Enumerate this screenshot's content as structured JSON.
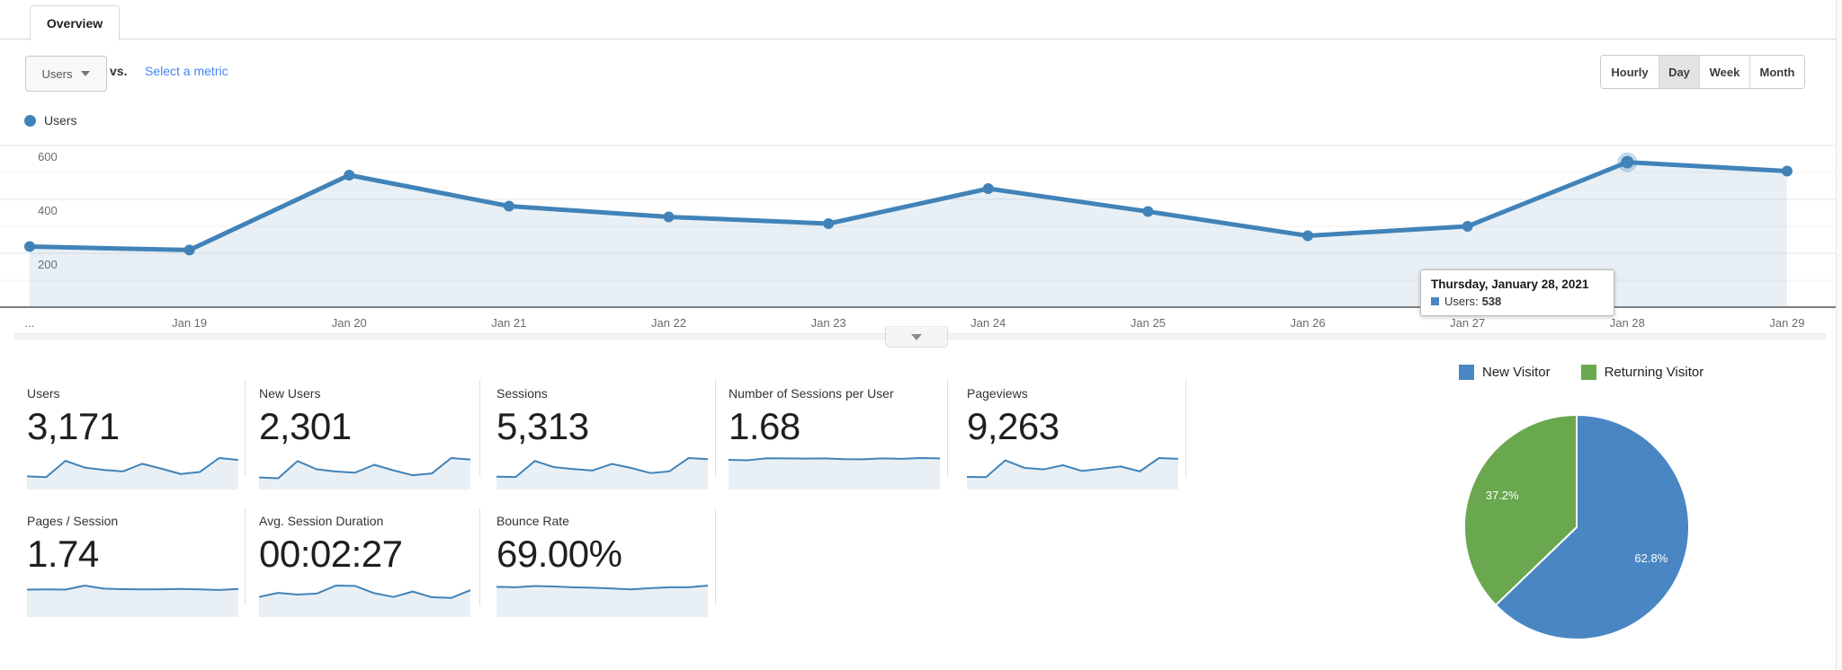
{
  "tab": {
    "label": "Overview"
  },
  "controls": {
    "metric_dropdown": {
      "value": "Users"
    },
    "vs_label": "vs.",
    "select_metric": "Select a metric",
    "granularity": [
      "Hourly",
      "Day",
      "Week",
      "Month"
    ],
    "granularity_active": "Day"
  },
  "chart_legend": {
    "label": "Users"
  },
  "tooltip": {
    "date": "Thursday, January 28, 2021",
    "metric": "Users:",
    "value": "538"
  },
  "icons": {
    "dropdown_caret": "caret-down",
    "collapse": "chevron-down"
  },
  "colors": {
    "line_blue": "#4183b8",
    "area_fill": "rgba(66,131,184,0.12)",
    "pie_blue": "#4a86c3",
    "pie_green": "#6aa84f",
    "link_blue": "#4285f4",
    "grid_major": "#e6e6e6",
    "grid_minor": "#f3f3f3",
    "axis_line": "#7e7e7e",
    "axis_text": "#6b6b6b"
  },
  "chart_data": [
    {
      "type": "line",
      "title": "Users by day",
      "categories": [
        "...",
        "Jan 19",
        "Jan 20",
        "Jan 21",
        "Jan 22",
        "Jan 23",
        "Jan 24",
        "Jan 25",
        "Jan 26",
        "Jan 27",
        "Jan 28",
        "Jan 29"
      ],
      "series": [
        {
          "name": "Users",
          "values": [
            225,
            212,
            490,
            375,
            335,
            310,
            440,
            355,
            265,
            300,
            538,
            505
          ]
        }
      ],
      "ylim": [
        0,
        650
      ],
      "yticks": [
        200,
        400,
        600
      ],
      "yticks_minor": [
        100,
        300,
        500
      ],
      "grid": true,
      "legend_position": "top-left",
      "highlight_index": 10,
      "highlight_label": "Users: 538"
    },
    {
      "type": "pie",
      "title": "New vs Returning Visitors",
      "labels": [
        "New Visitor",
        "Returning Visitor"
      ],
      "values": [
        62.8,
        37.2
      ],
      "value_labels": [
        "62.8%",
        "37.2%"
      ],
      "colors": [
        "#4a86c3",
        "#6aa84f"
      ],
      "legend_position": "top"
    }
  ],
  "metrics": {
    "cards": [
      {
        "label": "Users",
        "value": "3,171",
        "spark": [
          225,
          212,
          490,
          375,
          335,
          310,
          440,
          355,
          265,
          300,
          538,
          505
        ]
      },
      {
        "label": "New Users",
        "value": "2,301",
        "spark": [
          160,
          150,
          380,
          270,
          240,
          225,
          330,
          255,
          190,
          215,
          420,
          400
        ]
      },
      {
        "label": "Sessions",
        "value": "5,313",
        "spark": [
          350,
          340,
          780,
          610,
          560,
          520,
          700,
          590,
          450,
          495,
          860,
          830
        ]
      },
      {
        "label": "Number of Sessions per User",
        "value": "1.68",
        "spark": [
          1.62,
          1.6,
          1.71,
          1.7,
          1.69,
          1.7,
          1.66,
          1.65,
          1.7,
          1.68,
          1.72,
          1.7
        ]
      },
      {
        "label": "Pageviews",
        "value": "9,263",
        "spark": [
          610,
          600,
          1420,
          1050,
          980,
          1180,
          900,
          1010,
          1120,
          880,
          1530,
          1490
        ]
      },
      {
        "label": "Pages / Session",
        "value": "1.74",
        "spark": [
          1.7,
          1.71,
          1.7,
          1.95,
          1.76,
          1.73,
          1.71,
          1.72,
          1.74,
          1.71,
          1.68,
          1.74
        ]
      },
      {
        "label": "Avg. Session Duration",
        "value": "00:02:27",
        "spark": [
          118,
          142,
          132,
          138,
          185,
          183,
          140,
          118,
          150,
          116,
          112,
          158
        ]
      },
      {
        "label": "Bounce Rate",
        "value": "69.00%",
        "spark": [
          71,
          70,
          73,
          72,
          70,
          69,
          67,
          65,
          68,
          70,
          70,
          74
        ]
      }
    ]
  },
  "pie_legend": {
    "items": [
      "New Visitor",
      "Returning Visitor"
    ]
  }
}
